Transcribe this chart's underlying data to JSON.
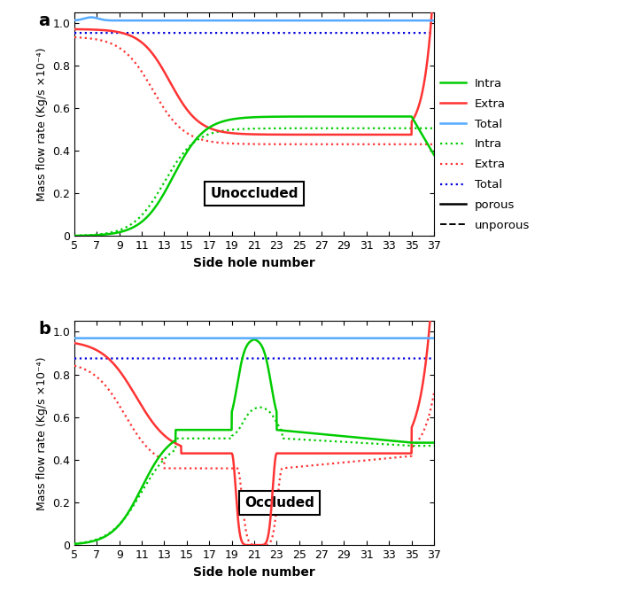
{
  "x_ticks": [
    5,
    7,
    9,
    11,
    13,
    15,
    17,
    19,
    21,
    23,
    25,
    27,
    29,
    31,
    33,
    35,
    37
  ],
  "x_min": 5,
  "x_max": 37,
  "ylim": [
    0,
    1.05
  ],
  "yticks": [
    0,
    0.2,
    0.4,
    0.6,
    0.8,
    1.0
  ],
  "ylabel": "Mass flow rate (Kg/s ×10⁻⁴)",
  "xlabel": "Side hole number",
  "colors": {
    "green": "#00CC00",
    "red": "#FF3333",
    "blue": "#55AAFF",
    "dblue": "#0000DD"
  },
  "panel_a_label": "Unoccluded",
  "panel_b_label": "Occluded"
}
